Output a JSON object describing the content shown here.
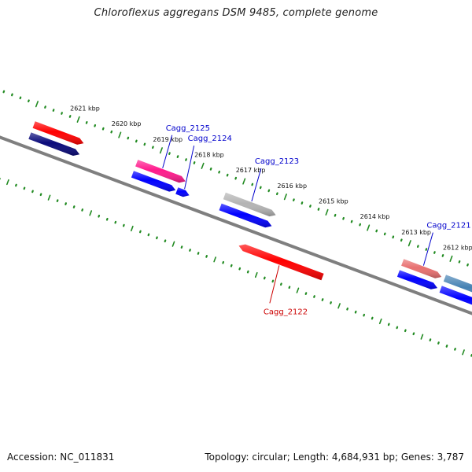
{
  "title": "Chloroflexus aggregans DSM 9485, complete genome",
  "footer": {
    "accession": "Accession: NC_011831",
    "summary": "Topology: circular; Length: 4,684,931 bp; Genes: 3,787"
  },
  "scale": {
    "unit": "kbp",
    "ticks": [
      {
        "kbp": 2621,
        "label": "2621 kbp"
      },
      {
        "kbp": 2620,
        "label": "2620 kbp"
      },
      {
        "kbp": 2619,
        "label": "2619 kbp"
      },
      {
        "kbp": 2618,
        "label": "2618 kbp"
      },
      {
        "kbp": 2617,
        "label": "2617 kbp"
      },
      {
        "kbp": 2616,
        "label": "2616 kbp"
      },
      {
        "kbp": 2615,
        "label": "2615 kbp"
      },
      {
        "kbp": 2614,
        "label": "2614 kbp"
      },
      {
        "kbp": 2613,
        "label": "2613 kbp"
      },
      {
        "kbp": 2612,
        "label": "2612 kbp"
      }
    ]
  },
  "colors": {
    "backbone": "#808080",
    "scale_ticks": "#228b22",
    "label_forward": "#0000cc",
    "label_reverse": "#cc0000"
  },
  "genes": [
    {
      "id": "f-left-red",
      "label": "",
      "strand": "+",
      "track": "outer",
      "start": 2621.9,
      "end": 2620.7,
      "color": "#ff0000"
    },
    {
      "id": "f-left-navy",
      "label": "",
      "strand": "+",
      "track": "inner",
      "start": 2621.9,
      "end": 2620.7,
      "color": "#0a0a7a"
    },
    {
      "id": "Cagg_2125",
      "label": "Cagg_2125",
      "strand": "+",
      "track": "outer",
      "start": 2619.42,
      "end": 2618.24,
      "color": "#ff1a8c"
    },
    {
      "id": "f-blue-a",
      "label": "",
      "strand": "+",
      "track": "inner",
      "start": 2619.42,
      "end": 2618.38,
      "color": "#0000ff"
    },
    {
      "id": "Cagg_2124",
      "label": "Cagg_2124",
      "strand": "+",
      "track": "inner",
      "start": 2618.35,
      "end": 2618.05,
      "color": "#0000ff"
    },
    {
      "id": "Cagg_2123",
      "label": "Cagg_2123",
      "strand": "+",
      "track": "outer",
      "start": 2617.3,
      "end": 2616.06,
      "color": "#b4b4b4"
    },
    {
      "id": "f-blue-b",
      "label": "",
      "strand": "+",
      "track": "inner",
      "start": 2617.3,
      "end": 2616.06,
      "color": "#0000ff"
    },
    {
      "id": "Cagg_2122",
      "label": "Cagg_2122",
      "strand": "-",
      "track": "reverse",
      "start": 2616.6,
      "end": 2614.58,
      "color": "#ff0000"
    },
    {
      "id": "Cagg_2121",
      "label": "Cagg_2121",
      "strand": "+",
      "track": "outer",
      "start": 2613.0,
      "end": 2612.06,
      "color": "#e87070"
    },
    {
      "id": "f-blue-c",
      "label": "",
      "strand": "+",
      "track": "inner",
      "start": 2613.0,
      "end": 2612.06,
      "color": "#0000ff"
    },
    {
      "id": "f-right-steel",
      "label": "",
      "strand": "+",
      "track": "outer",
      "start": 2611.98,
      "end": 2610.5,
      "color": "#4682b4"
    },
    {
      "id": "f-right-blue",
      "label": "",
      "strand": "+",
      "track": "inner",
      "start": 2611.98,
      "end": 2610.5,
      "color": "#0000ff"
    }
  ]
}
